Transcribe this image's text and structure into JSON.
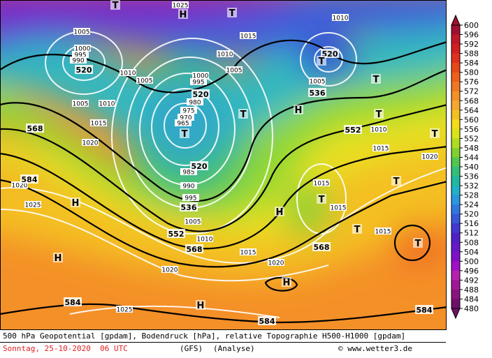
{
  "map": {
    "geopotential_labels": [
      "520",
      "520",
      "520",
      "520",
      "536",
      "536",
      "552",
      "552",
      "568",
      "568",
      "568",
      "584",
      "584",
      "584",
      "584"
    ],
    "centers": [
      "T",
      "H",
      "T",
      "T",
      "T",
      "T",
      "T",
      "H",
      "T",
      "T",
      "T",
      "T",
      "H",
      "H",
      "H",
      "T",
      "T",
      "H",
      "H"
    ],
    "pressure_labels": [
      "1025",
      "1010",
      "1005",
      "1015",
      "1000",
      "995",
      "990",
      "1010",
      "1005",
      "1010",
      "1005",
      "1000",
      "995",
      "1005",
      "1010",
      "980",
      "975",
      "970",
      "965",
      "1015",
      "1010",
      "1020",
      "1015",
      "985",
      "990",
      "995",
      "1005",
      "1010",
      "1020",
      "1025",
      "1015",
      "1015",
      "1015",
      "1015",
      "1020",
      "1020",
      "1025",
      "1020",
      "1005"
    ]
  },
  "colorbar": {
    "ticks": [
      600,
      596,
      592,
      588,
      584,
      580,
      576,
      572,
      568,
      564,
      560,
      556,
      552,
      548,
      544,
      540,
      536,
      532,
      528,
      524,
      520,
      516,
      512,
      508,
      504,
      500,
      496,
      492,
      488,
      484,
      480
    ],
    "colors": [
      "#a01030",
      "#c01828",
      "#d02020",
      "#e03020",
      "#e84818",
      "#f06018",
      "#f07820",
      "#f49028",
      "#f4a830",
      "#f4c020",
      "#f4dc18",
      "#d8e418",
      "#b0dc20",
      "#80d030",
      "#50c850",
      "#30c078",
      "#20b8a0",
      "#20b0c8",
      "#2898e0",
      "#3078e0",
      "#3858d8",
      "#4038d0",
      "#5020c8",
      "#6818c8",
      "#8010c8",
      "#a010c8",
      "#b820b0",
      "#a01898",
      "#881480",
      "#701068"
    ]
  },
  "footer": {
    "description": "500 hPa Geopotential [gpdam], Bodendruck [hPa], relative Topographie H500-H1000 [gpdam]",
    "date": "Sonntag, 25-10-2020  06 UTC",
    "model": "(GFS)",
    "run": "(Analyse)",
    "source": "© www.wetter3.de"
  }
}
